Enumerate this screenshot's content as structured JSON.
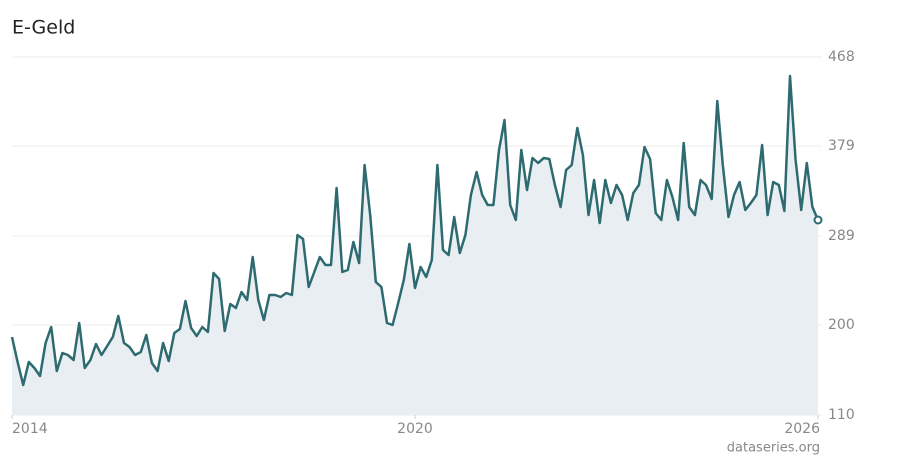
{
  "chart_data": {
    "type": "line",
    "title": "E-Geld",
    "source": "dataseries.org",
    "color": "#2e6b70",
    "fill": "#e8eef1",
    "x": [
      2014,
      2014.083,
      2014.167,
      2014.25,
      2014.333,
      2014.417,
      2014.5,
      2014.583,
      2014.667,
      2014.75,
      2014.833,
      2014.917,
      2015,
      2015.083,
      2015.167,
      2015.25,
      2015.333,
      2015.417,
      2015.5,
      2015.583,
      2015.667,
      2015.75,
      2015.833,
      2015.917,
      2016,
      2016.083,
      2016.167,
      2016.25,
      2016.333,
      2016.417,
      2016.5,
      2016.583,
      2016.667,
      2016.75,
      2016.833,
      2016.917,
      2017,
      2017.083,
      2017.167,
      2017.25,
      2017.333,
      2017.417,
      2017.5,
      2017.583,
      2017.667,
      2017.75,
      2017.833,
      2017.917,
      2018,
      2018.083,
      2018.167,
      2018.25,
      2018.333,
      2018.417,
      2018.5,
      2018.583,
      2018.667,
      2018.75,
      2018.833,
      2018.917,
      2019,
      2019.083,
      2019.167,
      2019.25,
      2019.333,
      2019.417,
      2019.5,
      2019.583,
      2019.667,
      2019.75,
      2019.833,
      2019.917,
      2020,
      2020.083,
      2020.167,
      2020.25,
      2020.333,
      2020.417,
      2020.5,
      2020.583,
      2020.667,
      2020.75,
      2020.833,
      2020.917,
      2021,
      2021.083,
      2021.167,
      2021.25,
      2021.333,
      2021.417,
      2021.5,
      2021.583,
      2021.667,
      2021.75,
      2021.833,
      2021.917,
      2022,
      2022.083,
      2022.167,
      2022.25,
      2022.333,
      2022.417,
      2022.5,
      2022.583,
      2022.667,
      2022.75,
      2022.833,
      2022.917,
      2023,
      2023.083,
      2023.167,
      2023.25,
      2023.333,
      2023.417,
      2023.5,
      2023.583,
      2023.667,
      2023.75,
      2023.833,
      2023.917,
      2024,
      2024.083,
      2024.167,
      2024.25,
      2024.333,
      2024.417,
      2024.5,
      2024.583,
      2024.667,
      2024.75,
      2024.833,
      2024.917,
      2025,
      2025.083,
      2025.167,
      2025.25,
      2025.333,
      2025.417,
      2025.5,
      2025.583,
      2025.667,
      2025.75,
      2025.833,
      2025.917,
      2026
    ],
    "values": [
      188,
      163,
      140,
      163,
      157,
      149,
      182,
      198,
      154,
      172,
      170,
      165,
      202,
      157,
      165,
      181,
      170,
      179,
      188,
      209,
      182,
      178,
      170,
      173,
      190,
      162,
      154,
      182,
      164,
      192,
      196,
      224,
      197,
      189,
      198,
      193,
      252,
      246,
      194,
      221,
      217,
      233,
      225,
      268,
      225,
      205,
      230,
      230,
      228,
      232,
      230,
      290,
      286,
      238,
      253,
      268,
      260,
      260,
      337,
      253,
      255,
      283,
      262,
      360,
      310,
      243,
      238,
      202,
      200,
      222,
      245,
      281,
      237,
      258,
      248,
      265,
      360,
      275,
      270,
      308,
      272,
      290,
      330,
      353,
      330,
      320,
      320,
      375,
      405,
      320,
      305,
      375,
      335,
      367,
      362,
      367,
      366,
      340,
      318,
      355,
      360,
      397,
      370,
      310,
      345,
      302,
      345,
      322,
      340,
      330,
      305,
      332,
      340,
      378,
      366,
      312,
      305,
      345,
      328,
      305,
      382,
      318,
      310,
      345,
      340,
      326,
      424,
      360,
      308,
      330,
      343,
      315,
      322,
      330,
      380,
      310,
      343,
      340,
      314,
      449,
      365,
      315,
      362,
      318,
      305
    ],
    "xlim": [
      2014,
      2026
    ],
    "xticks": [
      2014,
      2020,
      2026
    ],
    "ylim": [
      110,
      468
    ],
    "yticks": [
      110,
      200,
      289,
      379,
      468
    ],
    "grid": true
  }
}
